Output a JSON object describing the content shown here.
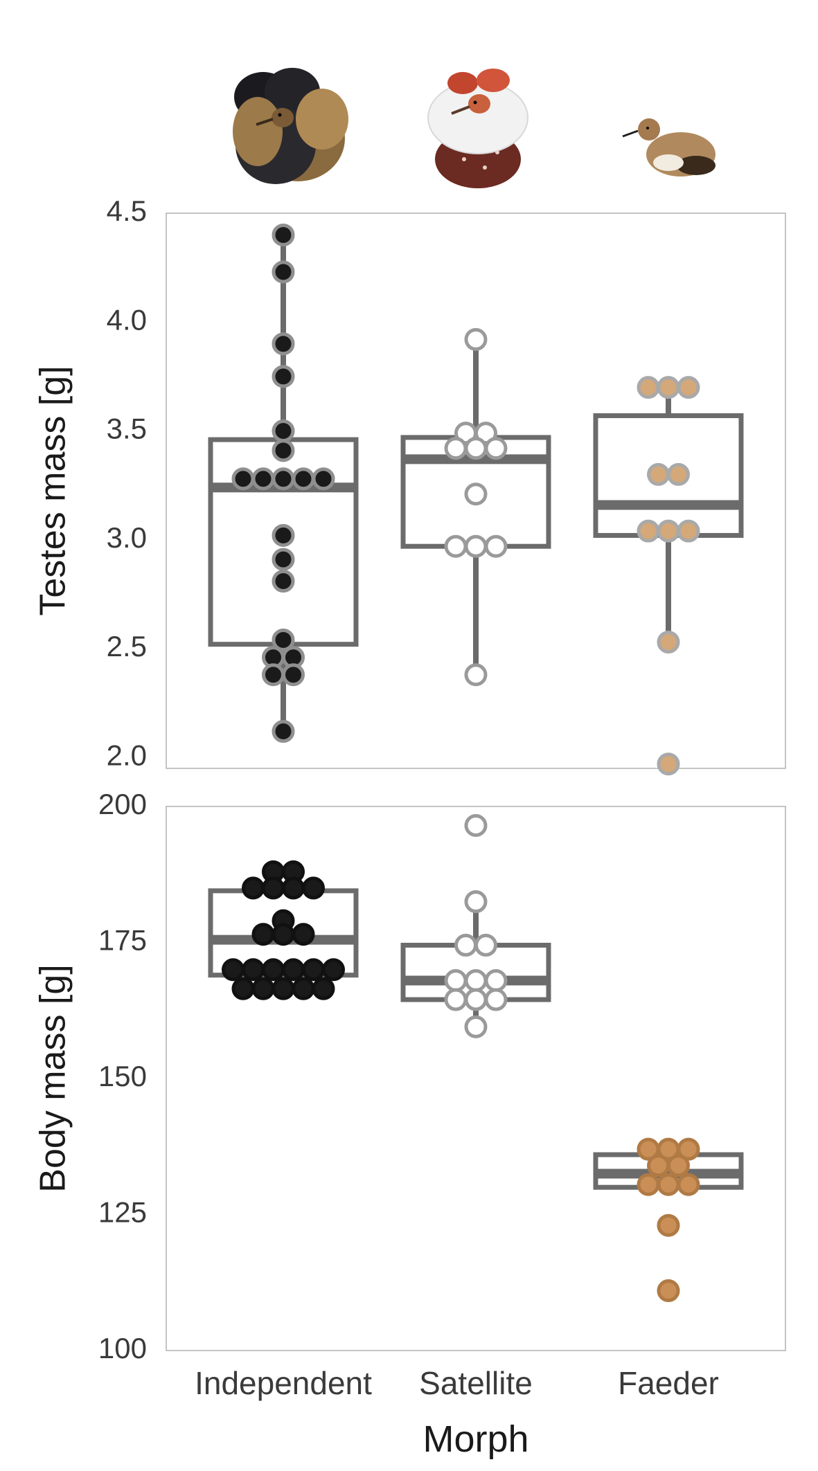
{
  "chart_data": [
    {
      "type": "box",
      "title": "",
      "xlabel": "",
      "ylabel": "Testes mass [g]",
      "ylim": [
        1.95,
        4.5
      ],
      "yticks": [
        "2.0",
        "2.5",
        "3.0",
        "3.5",
        "4.0",
        "4.5"
      ],
      "grid": false,
      "categories": [
        "Independent",
        "Satellite",
        "Faeder"
      ],
      "series": [
        {
          "category": "Independent",
          "box": {
            "q1": 2.52,
            "median": 3.24,
            "q3": 3.46,
            "whisker_low": 2.12,
            "whisker_high": 4.4
          },
          "points": [
            4.4,
            4.23,
            3.9,
            3.75,
            3.5,
            3.41,
            3.28,
            3.28,
            3.28,
            3.28,
            3.28,
            3.02,
            2.91,
            2.81,
            2.54,
            2.46,
            2.46,
            2.38,
            2.38,
            2.12
          ]
        },
        {
          "category": "Satellite",
          "box": {
            "q1": 2.97,
            "median": 3.37,
            "q3": 3.47,
            "whisker_low": 2.38,
            "whisker_high": 3.92
          },
          "points": [
            3.92,
            3.49,
            3.49,
            3.42,
            3.42,
            3.42,
            3.21,
            2.97,
            2.97,
            2.97,
            2.38
          ]
        },
        {
          "category": "Faeder",
          "box": {
            "q1": 3.02,
            "median": 3.16,
            "q3": 3.57,
            "whisker_low": 2.53,
            "whisker_high": 3.7
          },
          "points": [
            3.7,
            3.7,
            3.7,
            3.3,
            3.3,
            3.04,
            3.04,
            3.04,
            2.53,
            1.97
          ]
        }
      ]
    },
    {
      "type": "box",
      "title": "",
      "xlabel": "Morph",
      "ylabel": "Body mass [g]",
      "ylim": [
        100,
        200
      ],
      "yticks": [
        "100",
        "125",
        "150",
        "175",
        "200"
      ],
      "grid": false,
      "categories": [
        "Independent",
        "Satellite",
        "Faeder"
      ],
      "series": [
        {
          "category": "Independent",
          "box": {
            "q1": 169,
            "median": 175.5,
            "q3": 184.5,
            "whisker_low": 169,
            "whisker_high": 184.5
          },
          "points": [
            188,
            188,
            185,
            185,
            185,
            185,
            179,
            176.5,
            176.5,
            176.5,
            170,
            170,
            170,
            170,
            170,
            170,
            166.5,
            166.5,
            166.5,
            166.5,
            166.5
          ]
        },
        {
          "category": "Satellite",
          "box": {
            "q1": 164.5,
            "median": 168,
            "q3": 174.5,
            "whisker_low": 159.5,
            "whisker_high": 182.5
          },
          "points": [
            196.5,
            182.5,
            174.5,
            174.5,
            168,
            168,
            168,
            164.5,
            164.5,
            164.5,
            159.5
          ]
        },
        {
          "category": "Faeder",
          "box": {
            "q1": 130,
            "median": 132.5,
            "q3": 136,
            "whisker_low": 130,
            "whisker_high": 136
          },
          "points": [
            137,
            137,
            137,
            134,
            134,
            130.5,
            130.5,
            130.5,
            123,
            111
          ]
        }
      ]
    }
  ],
  "colors": {
    "box_stroke": "#6b6b6b",
    "frame": "#b0b0b0",
    "text": "#3a3a3a",
    "independent_fill": "#1a1a1a",
    "independent_stroke": "#8f8f8f",
    "satellite_fill": "#ffffff",
    "satellite_stroke": "#9a9a9a",
    "faeder_fill": "#d4a878",
    "faeder_stroke": "#a9a9a9",
    "body_independent_stroke": "#111111",
    "body_satellite_stroke": "#9a9a9a",
    "body_faeder_fill": "#c98f57",
    "body_faeder_stroke": "#b07a45"
  },
  "illustrations": [
    "independent-ruff-icon",
    "satellite-ruff-icon",
    "faeder-ruff-icon"
  ]
}
